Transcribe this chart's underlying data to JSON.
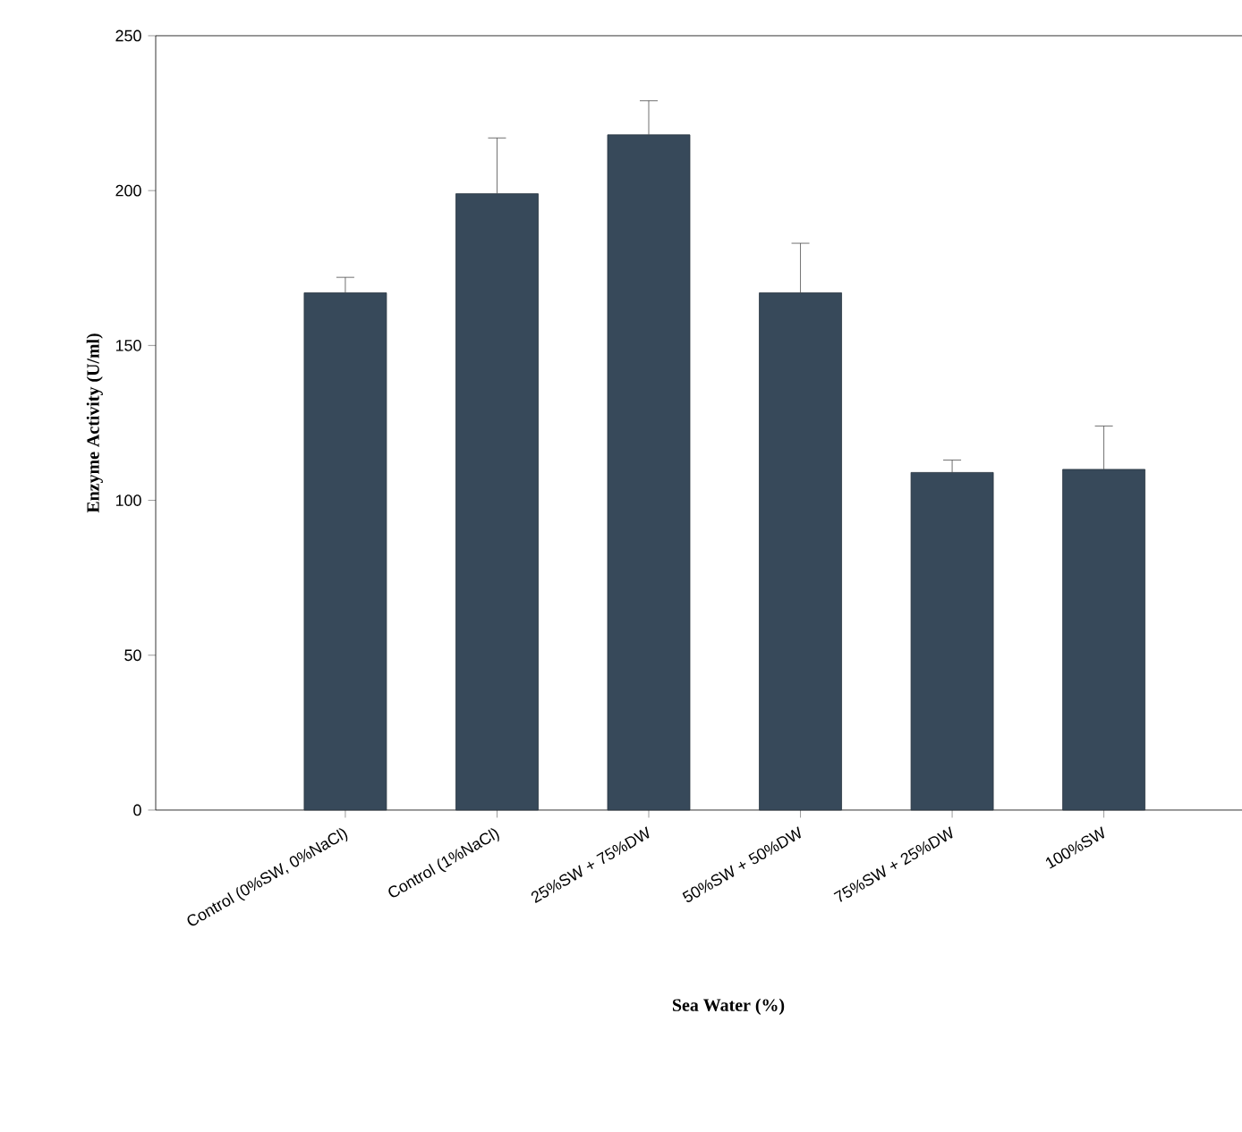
{
  "chart_data": {
    "type": "bar",
    "xlabel": "Sea Water (%)",
    "ylabel": "Enzyme Activity (U/ml)",
    "categories": [
      "Control (0%SW, 0%NaCl)",
      "Control (1%NaCl)",
      "25%SW + 75%DW",
      "50%SW + 50%DW",
      "75%SW + 25%DW",
      "100%SW"
    ],
    "values": [
      167,
      199,
      218,
      167,
      109,
      110
    ],
    "errors": [
      5,
      18,
      11,
      16,
      4,
      14
    ],
    "color": "#37495a",
    "ylim": [
      0,
      250
    ],
    "yticks": [
      0,
      50,
      100,
      150,
      200,
      250
    ],
    "grid": false
  }
}
